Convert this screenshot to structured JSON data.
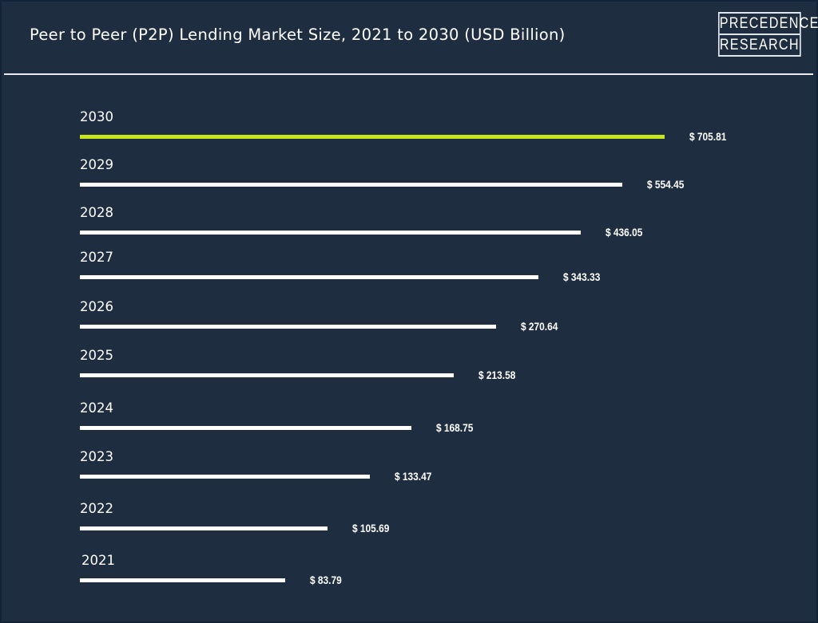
{
  "header": {
    "title": "Peer to Peer (P2P) Lending Market Size, 2021 to 2030 (USD Billion)",
    "logo_line1": "PRECEDENCE",
    "logo_line2": "RESEARCH"
  },
  "colors": {
    "background": "#1e2d40",
    "highlight": "#c8e61e",
    "bar": "#ffffff"
  },
  "chart_data": {
    "type": "bar",
    "orientation": "horizontal",
    "title": "Peer to Peer (P2P) Lending Market Size, 2021 to 2030 (USD Billion)",
    "categories": [
      "2030",
      "2029",
      "2028",
      "2027",
      "2026",
      "2025",
      "2024",
      "2023",
      "2022",
      "2021"
    ],
    "values": [
      705.81,
      554.45,
      436.05,
      343.33,
      270.64,
      213.58,
      168.75,
      133.47,
      105.69,
      83.79
    ],
    "data_labels": [
      "$ 705.81",
      "$ 554.45",
      "$ 436.05",
      "$ 343.33",
      "$ 270.64",
      "$ 213.58",
      "$ 168.75",
      "$ 133.47",
      "$ 105.69",
      "$ 83.79"
    ],
    "highlight_category": "2030",
    "grid": false,
    "legend": "none"
  }
}
